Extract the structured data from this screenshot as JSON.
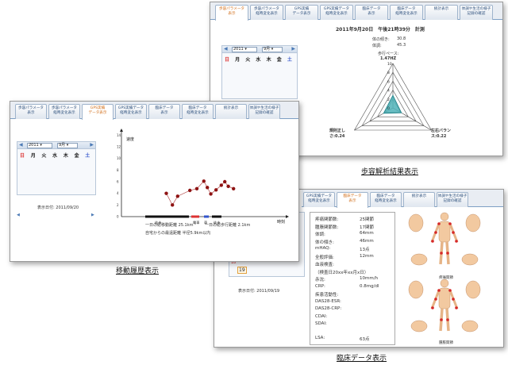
{
  "tabs_gait": [
    {
      "l1": "歩容パラメータ",
      "l2": "表示",
      "active": true
    },
    {
      "l1": "歩容パラメータ",
      "l2": "経時変化表示",
      "active": false
    },
    {
      "l1": "GPS実績",
      "l2": "データ表示",
      "active": false
    },
    {
      "l1": "GPS実績データ",
      "l2": "経時変化表示",
      "active": false
    },
    {
      "l1": "臨床データ",
      "l2": "表示",
      "active": false
    },
    {
      "l1": "臨床データ",
      "l2": "経時変化表示",
      "active": false
    },
    {
      "l1": "統計表示",
      "l2": "",
      "active": false
    },
    {
      "l1": "体調や生活の様子",
      "l2": "記録の確認",
      "active": false
    }
  ],
  "tabs_gps": [
    {
      "l1": "歩容パラメータ",
      "l2": "表示",
      "active": false
    },
    {
      "l1": "歩容パラメータ",
      "l2": "経時変化表示",
      "active": false
    },
    {
      "l1": "GPS実績",
      "l2": "データ表示",
      "active": true
    },
    {
      "l1": "GPS実績データ",
      "l2": "経時変化表示",
      "active": false
    },
    {
      "l1": "臨床データ",
      "l2": "表示",
      "active": false
    },
    {
      "l1": "臨床データ",
      "l2": "経時変化表示",
      "active": false
    },
    {
      "l1": "統計表示",
      "l2": "",
      "active": false
    },
    {
      "l1": "体調や生活の様子",
      "l2": "記録の確認",
      "active": false
    }
  ],
  "tabs_clinical": [
    {
      "l1": "GPS実績データ",
      "l2": "経時変化表示",
      "active": false
    },
    {
      "l1": "臨床データ",
      "l2": "表示",
      "active": true
    },
    {
      "l1": "臨床データ",
      "l2": "経時変化表示",
      "active": false
    },
    {
      "l1": "統計表示",
      "l2": "",
      "active": false
    },
    {
      "l1": "体調や生活の様子",
      "l2": "記録の確認",
      "active": false
    }
  ],
  "calendar": {
    "year": "2011",
    "month": "9月",
    "weekdays": [
      "日",
      "月",
      "火",
      "水",
      "木",
      "金",
      "土"
    ],
    "prev": "◀",
    "next": "▶"
  },
  "gait": {
    "title": "2011年9月20日　午後21時39分　計測",
    "height_label": "体の傾き:",
    "height_value": "30.8",
    "weight_label": "体調:",
    "weight_value": "45.3",
    "center_label": "歩行ペース:",
    "center_value": "1.47HZ",
    "radar_ticks": [
      "10",
      "8",
      "6",
      "4",
      "2",
      "0"
    ],
    "axis_left": "規則正しさ:0.24",
    "axis_right": "左右バランス:0.22",
    "caption": "歩容解析結果表示"
  },
  "gps": {
    "display_date": "表示日付: 2011/09/20",
    "y_label": "速度",
    "x_label": "時刻",
    "legend": [
      {
        "label": "徒歩",
        "color": "#111111"
      },
      {
        "label": "電車",
        "color": "#d33"
      },
      {
        "label": "車",
        "color": "#3355cc"
      },
      {
        "label": "徒歩",
        "color": "#111111"
      }
    ],
    "total_distance": "一日の総移動距離  25.1km",
    "walk_distance": "一日の総歩行距離  2.1km",
    "home_distance": "自宅からの最遠距離  半径5.9km以内",
    "caption": "移動履歴表示"
  },
  "clinical": {
    "display_date": "表示日付: 2011/09/19",
    "rows": [
      {
        "k": "疼痛関節数:",
        "v": "25関節"
      },
      {
        "k": "腫脹関節数:",
        "v": "17関節"
      },
      {
        "k": "体調:",
        "v": "64mm"
      },
      {
        "k": "体の傾き:",
        "v": "46mm"
      },
      {
        "k": "mHAQ:",
        "v": "13点"
      },
      {
        "k": "全般評価:",
        "v": "12mm"
      },
      {
        "k": "血液検査:",
        "v": ""
      },
      {
        "k": "（検査日20xx年xx月x日）",
        "v": ""
      },
      {
        "k": "赤沈:",
        "v": "10mm/h"
      },
      {
        "k": "CRP:",
        "v": "0.8mg/dl"
      },
      {
        "k": "疾患活動性:",
        "v": ""
      },
      {
        "k": "DAS28-ESR:",
        "v": ""
      },
      {
        "k": "DAS28-CRP:",
        "v": ""
      },
      {
        "k": "CDAI:",
        "v": ""
      },
      {
        "k": "SDAI:",
        "v": ""
      },
      {
        "k": "LSA:",
        "v": "63点"
      }
    ],
    "pain_label": "疼痛関節",
    "swell_label": "腫脹関節",
    "caption": "臨床データ表示"
  },
  "chart_data": {
    "type": "scatter",
    "title": "",
    "xlabel": "時刻",
    "ylabel": "速度",
    "series": [
      {
        "values": [
          [
            15,
            4.0
          ],
          [
            22,
            2.0
          ],
          [
            28,
            3.5
          ],
          [
            42,
            4.5
          ],
          [
            50,
            4.8
          ],
          [
            58,
            6.1
          ],
          [
            62,
            5.0
          ],
          [
            66,
            3.9
          ],
          [
            72,
            4.6
          ],
          [
            78,
            5.4
          ],
          [
            82,
            6.0
          ],
          [
            86,
            5.2
          ],
          [
            92,
            4.8
          ]
        ]
      }
    ],
    "ylim": [
      0,
      15
    ]
  }
}
